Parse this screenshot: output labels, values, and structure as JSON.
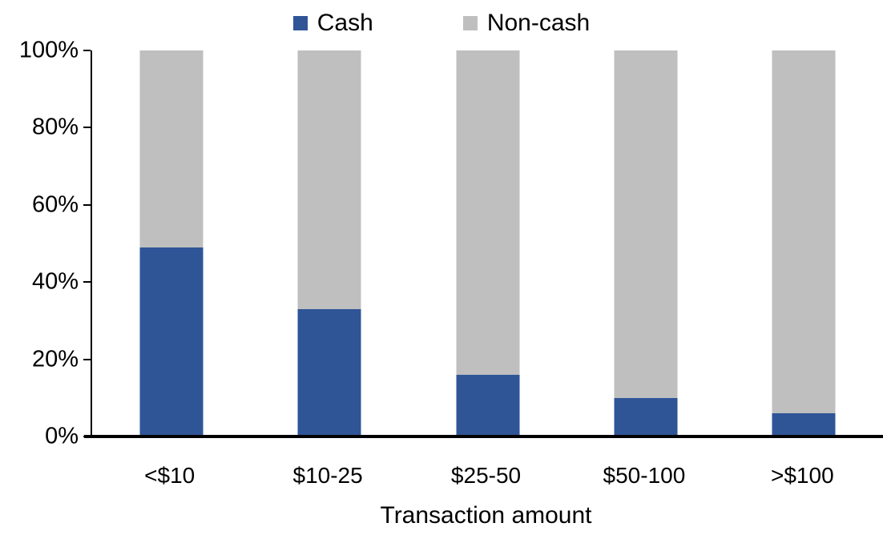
{
  "chart_data": {
    "type": "bar",
    "stacked": true,
    "orientation": "vertical",
    "title": "",
    "xlabel": "Transaction amount",
    "ylabel": "",
    "categories": [
      "<$10",
      "$10-25",
      "$25-50",
      "$50-100",
      ">$100"
    ],
    "series": [
      {
        "name": "Cash",
        "color": "#2F5597",
        "values": [
          49,
          33,
          16,
          10,
          6
        ]
      },
      {
        "name": "Non-cash",
        "color": "#BFBFBF",
        "values": [
          51,
          67,
          84,
          90,
          94
        ]
      }
    ],
    "ylim": [
      0,
      100
    ],
    "y_ticks": [
      0,
      20,
      40,
      60,
      80,
      100
    ],
    "y_tick_labels": [
      "0%",
      "20%",
      "40%",
      "60%",
      "80%",
      "100%"
    ],
    "legend_position": "top-center",
    "grid": false,
    "plot_background": "#ffffff",
    "axis_color": "#000000"
  }
}
